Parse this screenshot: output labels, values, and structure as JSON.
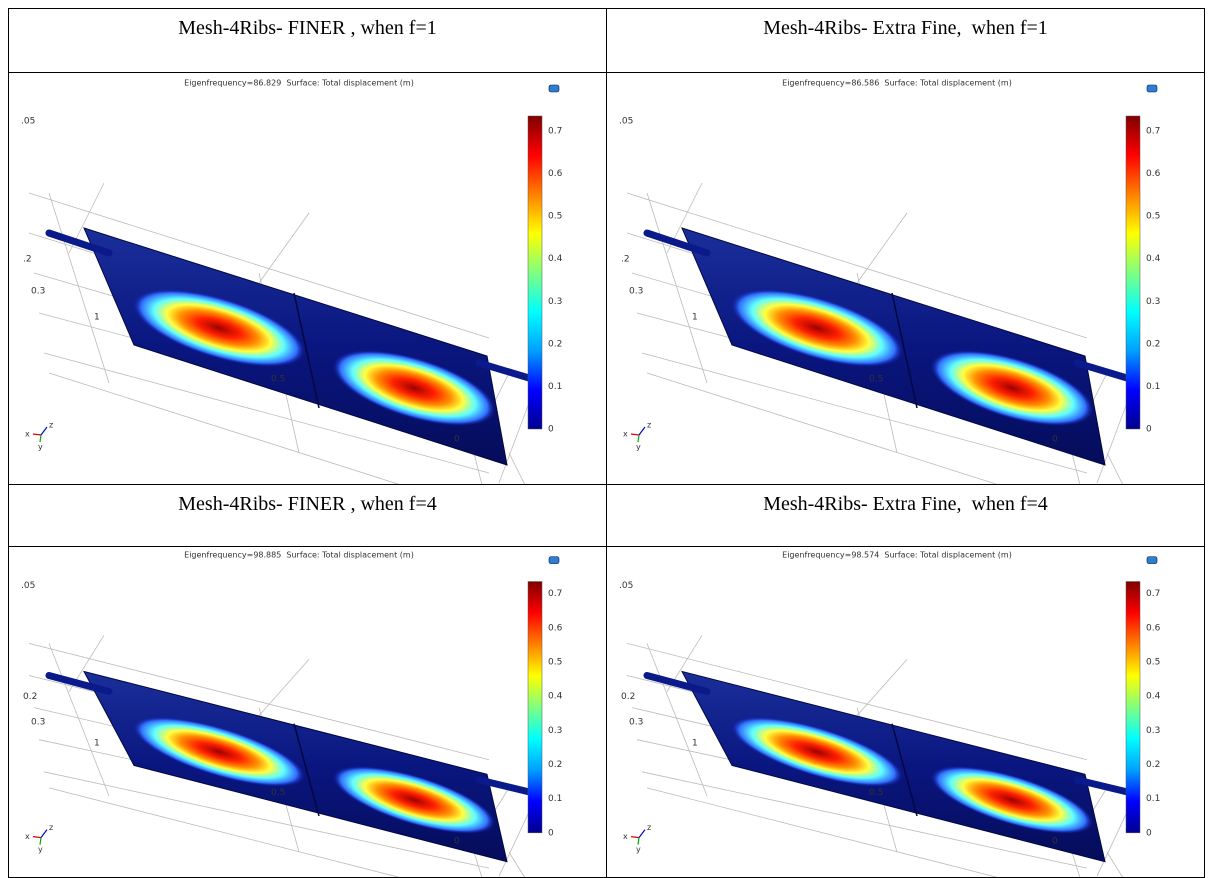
{
  "table": {
    "rows": [
      {
        "cells": [
          {
            "header": "Mesh-4Ribs- FINER , when f=1",
            "plot": {
              "title": "Eigenfrequency=86.829  Surface: Total displacement (m)",
              "colorbar_ticks": [
                0.7,
                0.6,
                0.5,
                0.4,
                0.3,
                0.2,
                0.1,
                0
              ],
              "axis_labels": [
                ".05",
                ".2",
                "0.3",
                "1",
                "0.5",
                "0"
              ],
              "triad": [
                "x",
                "z",
                "y"
              ]
            }
          },
          {
            "header": "Mesh-4Ribs- Extra Fine,  when f=1",
            "plot": {
              "title": "Eigenfrequency=86.586  Surface: Total displacement (m)",
              "colorbar_ticks": [
                0.7,
                0.6,
                0.5,
                0.4,
                0.3,
                0.2,
                0.1,
                0
              ],
              "axis_labels": [
                ".05",
                ".2",
                "0.3",
                "1",
                "0.5",
                "0"
              ],
              "triad": [
                "x",
                "z",
                "y"
              ]
            }
          }
        ]
      },
      {
        "cells": [
          {
            "header": "Mesh-4Ribs- FINER , when f=4",
            "plot": {
              "title": "Eigenfrequency=98.885  Surface: Total displacement (m)",
              "colorbar_ticks": [
                0.7,
                0.6,
                0.5,
                0.4,
                0.3,
                0.2,
                0.1,
                0
              ],
              "axis_labels": [
                ".05",
                "0.2",
                "0.3",
                "1",
                "0.5",
                "0"
              ],
              "triad": [
                "x",
                "z",
                "y"
              ]
            }
          },
          {
            "header": "Mesh-4Ribs- Extra Fine,  when f=4",
            "plot": {
              "title": "Eigenfrequency=98.574  Surface: Total displacement (m)",
              "colorbar_ticks": [
                0.7,
                0.6,
                0.5,
                0.4,
                0.3,
                0.2,
                0.1,
                0
              ],
              "axis_labels": [
                ".05",
                "0.2",
                "0.3",
                "1",
                "0.5",
                "0"
              ],
              "triad": [
                "x",
                "z",
                "y"
              ]
            }
          }
        ]
      }
    ]
  }
}
